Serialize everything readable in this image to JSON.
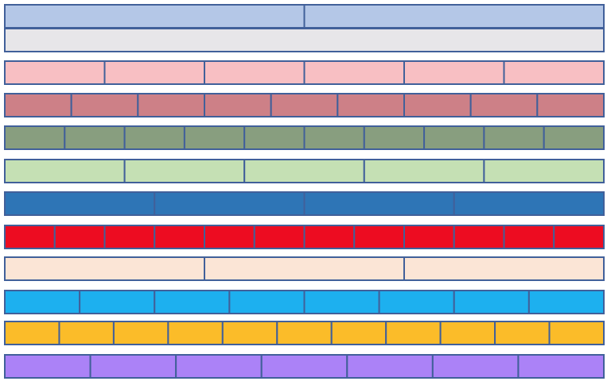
{
  "strips": [
    {
      "parts": 2,
      "color": "#b4c7e7"
    },
    {
      "parts": 1,
      "color": "#e7e6e9"
    },
    {
      "parts": 6,
      "color": "#f8bfc3"
    },
    {
      "parts": 9,
      "color": "#cd8087"
    },
    {
      "parts": 10,
      "color": "#889e7f"
    },
    {
      "parts": 5,
      "color": "#c5e0b4"
    },
    {
      "parts": 4,
      "color": "#2e75b6"
    },
    {
      "parts": 12,
      "color": "#ed0c21"
    },
    {
      "parts": 3,
      "color": "#fbe5d6"
    },
    {
      "parts": 8,
      "color": "#1db0ef"
    },
    {
      "parts": 11,
      "color": "#fbbc29"
    },
    {
      "parts": 7,
      "color": "#ab82f7"
    }
  ]
}
